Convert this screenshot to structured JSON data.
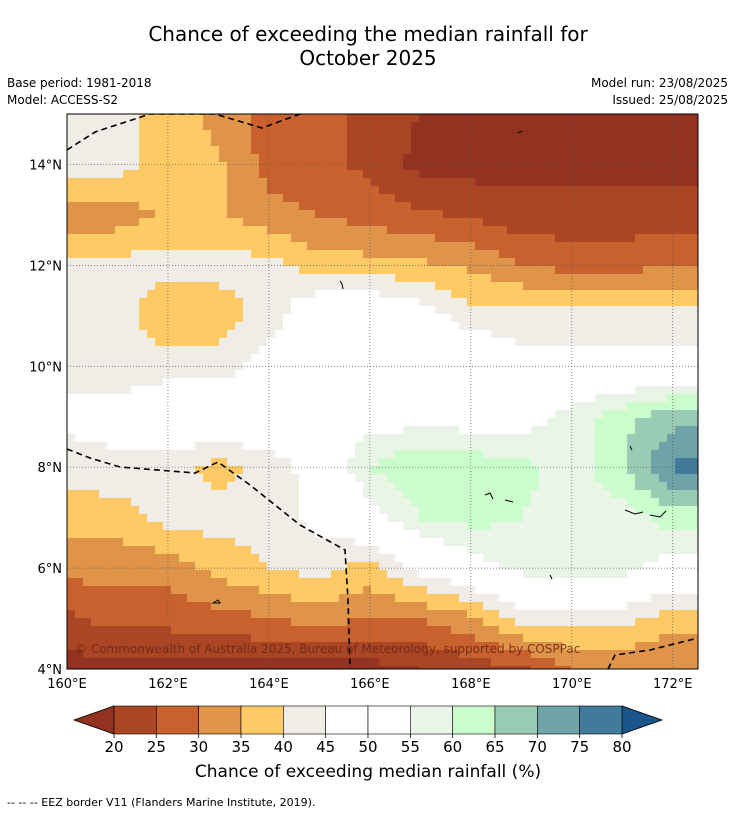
{
  "title_line1": "Chance of exceeding the median rainfall for",
  "title_line2": "October 2025",
  "meta_left": [
    "Base period: 1981-2018",
    "Model: ACCESS-S2"
  ],
  "meta_right": [
    "Model run: 23/08/2025",
    "Issued: 25/08/2025"
  ],
  "copyright": "© Commonwealth of Australia 2025, Bureau of Meteorology, supported by COSPPac",
  "footer_note": "--  --  -- EEZ border V11 (Flanders Marine Institute, 2019).",
  "map": {
    "lon_range": [
      160,
      172.5
    ],
    "lat_range": [
      4,
      15
    ],
    "lon_ticks": [
      {
        "v": 160,
        "label": "160°E"
      },
      {
        "v": 162,
        "label": "162°E"
      },
      {
        "v": 164,
        "label": "164°E"
      },
      {
        "v": 166,
        "label": "166°E"
      },
      {
        "v": 168,
        "label": "168°E"
      },
      {
        "v": 170,
        "label": "170°E"
      },
      {
        "v": 172,
        "label": "172°E"
      }
    ],
    "lat_ticks": [
      {
        "v": 4,
        "label": "4°N"
      },
      {
        "v": 6,
        "label": "6°N"
      },
      {
        "v": 8,
        "label": "8°N"
      },
      {
        "v": 10,
        "label": "10°N"
      },
      {
        "v": 12,
        "label": "12°N"
      },
      {
        "v": 14,
        "label": "14°N"
      }
    ],
    "grid": true
  },
  "colorbar": {
    "label": "Chance of exceeding median rainfall (%)",
    "ticks": [
      "20",
      "25",
      "30",
      "35",
      "40",
      "45",
      "50",
      "55",
      "60",
      "65",
      "70",
      "75",
      "80"
    ],
    "colors": [
      "#aa4624",
      "#c8612e",
      "#e0944a",
      "#fdca65",
      "#f0ece6",
      "#ffffff",
      "#ffffff",
      "#e9f5e7",
      "#cbfccb",
      "#9acbb5",
      "#6ea4a8",
      "#427b9a"
    ],
    "under_color": "#943221",
    "over_color": "#1a558a"
  },
  "chart_data": {
    "type": "heatmap",
    "title": "Chance of exceeding the median rainfall for October 2025",
    "xlabel": "",
    "ylabel": "",
    "xlim": [
      160,
      172.5
    ],
    "ylim": [
      4,
      15
    ],
    "units": "%",
    "x": [
      160,
      161,
      162,
      163,
      164,
      165,
      166,
      167,
      168,
      169,
      170,
      171,
      172
    ],
    "y": [
      15,
      14,
      13,
      12,
      11,
      10,
      9,
      8,
      7,
      6,
      5,
      4
    ],
    "z": [
      [
        42,
        42,
        38,
        33,
        28,
        26,
        24,
        20,
        18,
        18,
        18,
        18,
        18
      ],
      [
        42,
        42,
        38,
        36,
        28,
        26,
        24,
        18,
        18,
        18,
        18,
        18,
        18
      ],
      [
        32,
        32,
        36,
        36,
        32,
        30,
        28,
        26,
        24,
        22,
        22,
        22,
        22
      ],
      [
        42,
        42,
        42,
        42,
        42,
        37,
        37,
        36,
        34,
        30,
        28,
        28,
        30
      ],
      [
        42,
        42,
        36,
        37,
        42,
        52,
        52,
        48,
        42,
        42,
        42,
        42,
        42
      ],
      [
        42,
        42,
        42,
        42,
        48,
        52,
        52,
        52,
        52,
        47,
        47,
        47,
        47
      ],
      [
        47,
        47,
        52,
        52,
        52,
        52,
        52,
        52,
        52,
        52,
        57,
        63,
        68
      ],
      [
        42,
        44,
        42,
        38,
        42,
        48,
        60,
        65,
        63,
        62,
        57,
        65,
        76
      ],
      [
        37,
        37,
        42,
        42,
        42,
        47,
        52,
        60,
        62,
        60,
        57,
        57,
        63
      ],
      [
        32,
        32,
        32,
        37,
        40,
        42,
        38,
        47,
        52,
        57,
        57,
        57,
        52
      ],
      [
        24,
        27,
        27,
        28,
        30,
        32,
        30,
        30,
        34,
        42,
        42,
        42,
        37
      ],
      [
        18,
        18,
        18,
        18,
        18,
        18,
        18,
        20,
        22,
        24,
        30,
        30,
        30
      ]
    ],
    "contour_levels": [
      20,
      25,
      30,
      35,
      40,
      45,
      50,
      55,
      60,
      65,
      70,
      75,
      80
    ]
  }
}
